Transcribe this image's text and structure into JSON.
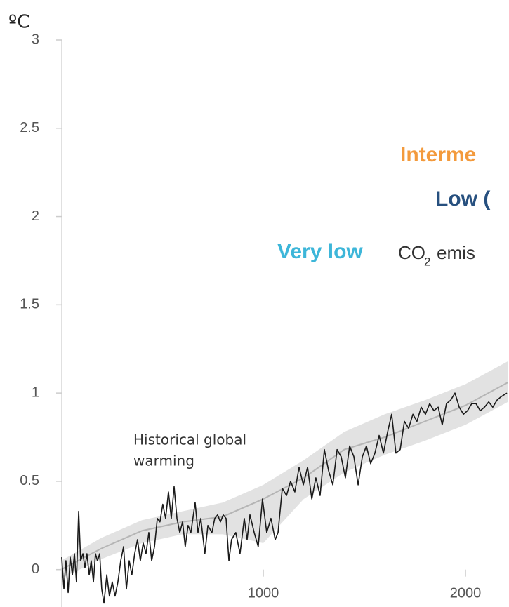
{
  "chart_data": {
    "type": "line",
    "y_unit": "ºC",
    "xlim": [
      0,
      2210
    ],
    "ylim": [
      -0.2,
      3
    ],
    "xticks": [
      1000,
      2000
    ],
    "yticks": [
      0,
      0.5,
      1,
      1.5,
      2,
      2.5,
      3
    ],
    "annotations": {
      "historical": [
        "Historical global",
        "warming"
      ],
      "intermediate": "Interme",
      "low": "Low (",
      "very_low": "Very low",
      "co": "CO",
      "co_sub": "2",
      "emis": "emis"
    },
    "annotation_colors": {
      "intermediate": "#f39a3c",
      "low": "#27507f",
      "very_low": "#3db6d9"
    },
    "band": {
      "color": "#e2e2e2",
      "line_color": "#b5b5b5",
      "x": [
        0,
        200,
        400,
        600,
        800,
        1000,
        1200,
        1400,
        1600,
        1800,
        2000,
        2210
      ],
      "values": [
        0.0,
        0.12,
        0.22,
        0.27,
        0.3,
        0.4,
        0.52,
        0.68,
        0.75,
        0.84,
        0.93,
        1.06
      ],
      "upper": [
        0.05,
        0.18,
        0.28,
        0.33,
        0.38,
        0.48,
        0.62,
        0.78,
        0.88,
        0.96,
        1.05,
        1.18
      ],
      "lower": [
        -0.05,
        0.06,
        0.15,
        0.2,
        0.2,
        0.15,
        0.4,
        0.55,
        0.65,
        0.73,
        0.82,
        0.95
      ]
    },
    "series": [
      {
        "color": "#1a1a1a",
        "x": [
          3,
          14,
          24,
          35,
          45,
          56,
          66,
          76,
          87,
          97,
          108,
          118,
          128,
          139,
          149,
          160,
          170,
          180,
          191,
          201,
          212,
          226,
          239,
          253,
          267,
          281,
          295,
          309,
          323,
          337,
          350,
          364,
          378,
          392,
          406,
          420,
          434,
          448,
          462,
          476,
          489,
          503,
          517,
          531,
          545,
          559,
          573,
          587,
          601,
          614,
          628,
          642,
          663,
          677,
          691,
          711,
          726,
          746,
          760,
          774,
          788,
          802,
          816,
          830,
          843,
          864,
          885,
          906,
          920,
          934,
          955,
          975,
          996,
          1017,
          1038,
          1059,
          1073,
          1094,
          1115,
          1135,
          1156,
          1177,
          1198,
          1219,
          1240,
          1260,
          1281,
          1302,
          1323,
          1344,
          1365,
          1385,
          1406,
          1427,
          1448,
          1469,
          1490,
          1510,
          1531,
          1552,
          1573,
          1594,
          1615,
          1635,
          1656,
          1677,
          1698,
          1719,
          1740,
          1760,
          1781,
          1802,
          1823,
          1844,
          1865,
          1885,
          1906,
          1927,
          1948,
          1969,
          1990,
          2010,
          2031,
          2052,
          2073,
          2094,
          2115,
          2135,
          2156,
          2177,
          2205
        ],
        "values": [
          0.07,
          -0.11,
          0.05,
          -0.13,
          0.07,
          -0.03,
          0.09,
          -0.07,
          0.33,
          0.05,
          0.09,
          0.01,
          0.09,
          -0.03,
          0.05,
          -0.07,
          0.09,
          0.05,
          0.09,
          -0.11,
          -0.19,
          -0.03,
          -0.15,
          -0.07,
          -0.15,
          -0.07,
          0.05,
          0.13,
          -0.11,
          0.05,
          -0.03,
          0.09,
          0.17,
          0.05,
          0.15,
          0.09,
          0.21,
          0.05,
          0.13,
          0.29,
          0.27,
          0.37,
          0.29,
          0.44,
          0.29,
          0.47,
          0.29,
          0.21,
          0.27,
          0.13,
          0.25,
          0.21,
          0.38,
          0.21,
          0.29,
          0.09,
          0.25,
          0.21,
          0.29,
          0.31,
          0.27,
          0.31,
          0.29,
          0.05,
          0.17,
          0.21,
          0.09,
          0.29,
          0.17,
          0.31,
          0.21,
          0.13,
          0.4,
          0.21,
          0.29,
          0.17,
          0.21,
          0.46,
          0.42,
          0.5,
          0.44,
          0.58,
          0.48,
          0.58,
          0.4,
          0.52,
          0.42,
          0.68,
          0.56,
          0.48,
          0.68,
          0.64,
          0.52,
          0.7,
          0.64,
          0.48,
          0.64,
          0.7,
          0.6,
          0.66,
          0.76,
          0.66,
          0.78,
          0.88,
          0.66,
          0.68,
          0.84,
          0.8,
          0.88,
          0.84,
          0.92,
          0.88,
          0.94,
          0.9,
          0.92,
          0.82,
          0.94,
          0.96,
          1.0,
          0.92,
          0.88,
          0.9,
          0.94,
          0.94,
          0.9,
          0.92,
          0.95,
          0.92,
          0.96,
          0.98,
          1.0
        ]
      }
    ]
  }
}
